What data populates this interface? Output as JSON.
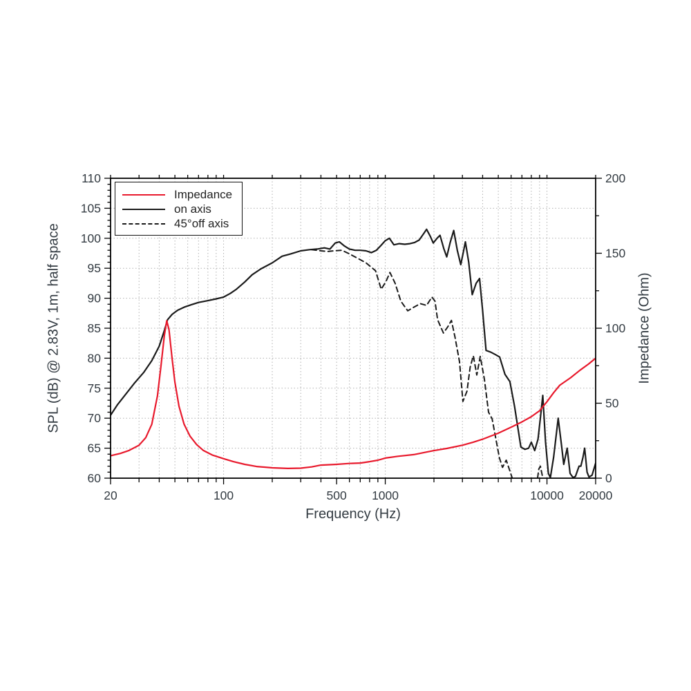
{
  "figure": {
    "xlabel": "Frequency (Hz)",
    "ylabel_left": "SPL (dB) @ 2.83V, 1m, half space",
    "ylabel_right": "Impedance (Ohm)"
  },
  "legend": {
    "items": [
      {
        "label": "Impedance",
        "style": "solid",
        "color": "#e8192c"
      },
      {
        "label": "on axis",
        "style": "solid",
        "color": "#1a1a1a"
      },
      {
        "label": "45°off axis",
        "style": "dashed",
        "color": "#1a1a1a"
      }
    ]
  },
  "colors": {
    "impedance_curve": "#e8192c",
    "spl_curve": "#1a1a1a",
    "grid": "#b0b0b0",
    "axis": "#000000",
    "tick_text": "#333b42"
  },
  "chart_data": {
    "type": "line",
    "title": "",
    "x_axis": {
      "label": "Frequency (Hz)",
      "scale": "log",
      "min": 20,
      "max": 20000,
      "tick_labels": [
        {
          "value": 20,
          "text": "20"
        },
        {
          "value": 100,
          "text": "100"
        },
        {
          "value": 500,
          "text": "500"
        },
        {
          "value": 1000,
          "text": "1000"
        },
        {
          "value": 10000,
          "text": "10000"
        },
        {
          "value": 20000,
          "text": "20000"
        }
      ]
    },
    "y_axis_left": {
      "label": "SPL (dB) @ 2.83V, 1m, half space",
      "min": 60,
      "max": 110,
      "major_step": 5,
      "minor_step": 1,
      "tick_labels": [
        "60",
        "65",
        "70",
        "75",
        "80",
        "85",
        "90",
        "95",
        "100",
        "105",
        "110"
      ]
    },
    "y_axis_right": {
      "label": "Impedance (Ohm)",
      "min": 0,
      "max": 200,
      "major_step": 50,
      "minor_step": 25,
      "tick_labels": [
        "0",
        "50",
        "100",
        "150",
        "200"
      ]
    },
    "grid": {
      "y_values_db": [
        65,
        70,
        75,
        80,
        85,
        90,
        95,
        100,
        105
      ],
      "x_log_minor_lines": true,
      "style": "dotted"
    },
    "legend_position": "top-left",
    "series": [
      {
        "name": "45°off axis",
        "axis": "left",
        "unit": "dB",
        "color": "#1a1a1a",
        "dash": "7,5",
        "width": 2,
        "points": [
          [
            350,
            98.1
          ],
          [
            400,
            97.9
          ],
          [
            440,
            97.8
          ],
          [
            480,
            97.9
          ],
          [
            540,
            98.0
          ],
          [
            600,
            97.4
          ],
          [
            670,
            96.7
          ],
          [
            760,
            95.9
          ],
          [
            870,
            94.6
          ],
          [
            944,
            91.5
          ],
          [
            1010,
            92.8
          ],
          [
            1069,
            94.3
          ],
          [
            1150,
            92.5
          ],
          [
            1248,
            89.5
          ],
          [
            1377,
            87.9
          ],
          [
            1500,
            88.5
          ],
          [
            1648,
            89.1
          ],
          [
            1800,
            88.8
          ],
          [
            1943,
            90.2
          ],
          [
            2030,
            89.5
          ],
          [
            2108,
            86.4
          ],
          [
            2289,
            84.2
          ],
          [
            2430,
            85.2
          ],
          [
            2566,
            86.3
          ],
          [
            2700,
            83.5
          ],
          [
            2877,
            79.4
          ],
          [
            3020,
            72.8
          ],
          [
            3200,
            74.5
          ],
          [
            3350,
            78.5
          ],
          [
            3506,
            80.4
          ],
          [
            3680,
            77.2
          ],
          [
            3868,
            80.3
          ],
          [
            4100,
            76.5
          ],
          [
            4350,
            71.0
          ],
          [
            4580,
            69.9
          ],
          [
            5080,
            63.4
          ],
          [
            5310,
            61.8
          ],
          [
            5600,
            63.0
          ],
          [
            5900,
            61.2
          ],
          [
            6100,
            60.0
          ],
          [
            6300,
            58.5
          ],
          [
            6600,
            57.0
          ],
          [
            8300,
            57.0
          ],
          [
            8600,
            58.5
          ],
          [
            8900,
            61.5
          ],
          [
            9100,
            62.0
          ],
          [
            9350,
            60.5
          ],
          [
            9600,
            57.5
          ]
        ]
      },
      {
        "name": "on axis",
        "axis": "left",
        "unit": "dB",
        "color": "#1a1a1a",
        "dash": null,
        "width": 2.2,
        "points": [
          [
            20,
            70.5
          ],
          [
            22,
            72.2
          ],
          [
            25,
            74.1
          ],
          [
            28,
            75.8
          ],
          [
            32,
            77.6
          ],
          [
            36,
            79.6
          ],
          [
            40,
            82.0
          ],
          [
            43,
            84.6
          ],
          [
            45,
            86.4
          ],
          [
            48,
            87.3
          ],
          [
            52,
            88.0
          ],
          [
            57,
            88.5
          ],
          [
            63,
            88.9
          ],
          [
            70,
            89.3
          ],
          [
            80,
            89.6
          ],
          [
            90,
            89.9
          ],
          [
            100,
            90.2
          ],
          [
            110,
            90.8
          ],
          [
            120,
            91.5
          ],
          [
            135,
            92.7
          ],
          [
            150,
            93.9
          ],
          [
            170,
            94.9
          ],
          [
            200,
            95.9
          ],
          [
            230,
            97.0
          ],
          [
            260,
            97.4
          ],
          [
            300,
            97.9
          ],
          [
            340,
            98.1
          ],
          [
            380,
            98.2
          ],
          [
            420,
            98.4
          ],
          [
            455,
            98.2
          ],
          [
            490,
            99.2
          ],
          [
            520,
            99.4
          ],
          [
            560,
            98.7
          ],
          [
            600,
            98.2
          ],
          [
            650,
            98.0
          ],
          [
            700,
            98.0
          ],
          [
            760,
            97.9
          ],
          [
            820,
            97.6
          ],
          [
            880,
            98.0
          ],
          [
            940,
            98.8
          ],
          [
            1000,
            99.6
          ],
          [
            1060,
            100.0
          ],
          [
            1130,
            98.9
          ],
          [
            1220,
            99.1
          ],
          [
            1320,
            99.0
          ],
          [
            1420,
            99.1
          ],
          [
            1520,
            99.3
          ],
          [
            1620,
            99.7
          ],
          [
            1730,
            100.8
          ],
          [
            1800,
            101.5
          ],
          [
            1900,
            100.3
          ],
          [
            1980,
            99.2
          ],
          [
            2090,
            100.0
          ],
          [
            2180,
            100.5
          ],
          [
            2300,
            98.3
          ],
          [
            2400,
            96.9
          ],
          [
            2520,
            99.3
          ],
          [
            2650,
            101.3
          ],
          [
            2790,
            98.0
          ],
          [
            2930,
            95.6
          ],
          [
            3030,
            97.5
          ],
          [
            3130,
            99.4
          ],
          [
            3280,
            96.0
          ],
          [
            3450,
            90.6
          ],
          [
            3650,
            92.5
          ],
          [
            3830,
            93.3
          ],
          [
            4000,
            88.0
          ],
          [
            4200,
            81.3
          ],
          [
            4500,
            81.0
          ],
          [
            4800,
            80.6
          ],
          [
            5100,
            80.2
          ],
          [
            5500,
            77.3
          ],
          [
            5900,
            76.1
          ],
          [
            6300,
            72.0
          ],
          [
            6900,
            65.2
          ],
          [
            7300,
            64.8
          ],
          [
            7700,
            65.0
          ],
          [
            8000,
            66.0
          ],
          [
            8400,
            64.6
          ],
          [
            8800,
            66.5
          ],
          [
            9100,
            70.0
          ],
          [
            9420,
            73.8
          ],
          [
            9800,
            66.0
          ],
          [
            10200,
            60.8
          ],
          [
            10500,
            60.1
          ],
          [
            11000,
            63.5
          ],
          [
            11730,
            70.0
          ],
          [
            12300,
            65.5
          ],
          [
            12700,
            62.3
          ],
          [
            13330,
            65.0
          ],
          [
            13900,
            60.8
          ],
          [
            14500,
            60.1
          ],
          [
            15000,
            60.3
          ],
          [
            15800,
            62.0
          ],
          [
            16200,
            62.0
          ],
          [
            16700,
            63.5
          ],
          [
            17100,
            65.0
          ],
          [
            17700,
            61.0
          ],
          [
            18200,
            60.2
          ],
          [
            19000,
            60.5
          ],
          [
            20000,
            62.5
          ]
        ]
      },
      {
        "name": "Impedance",
        "axis": "right",
        "unit": "Ohm",
        "color": "#e8192c",
        "dash": null,
        "width": 2.2,
        "points": [
          [
            20,
            15
          ],
          [
            23,
            16.5
          ],
          [
            26,
            18.5
          ],
          [
            30,
            22
          ],
          [
            33,
            27
          ],
          [
            36,
            36
          ],
          [
            39,
            55
          ],
          [
            41,
            75
          ],
          [
            43,
            95
          ],
          [
            44.5,
            105
          ],
          [
            46,
            99
          ],
          [
            48,
            80
          ],
          [
            50,
            64
          ],
          [
            53,
            48
          ],
          [
            57,
            36
          ],
          [
            62,
            28
          ],
          [
            68,
            22.5
          ],
          [
            75,
            18.5
          ],
          [
            85,
            15.5
          ],
          [
            100,
            13
          ],
          [
            115,
            11
          ],
          [
            135,
            9.2
          ],
          [
            160,
            7.8
          ],
          [
            200,
            6.9
          ],
          [
            250,
            6.5
          ],
          [
            300,
            6.7
          ],
          [
            350,
            7.5
          ],
          [
            400,
            8.7
          ],
          [
            500,
            9.2
          ],
          [
            600,
            9.8
          ],
          [
            700,
            10.1
          ],
          [
            800,
            11
          ],
          [
            900,
            12
          ],
          [
            1000,
            13.4
          ],
          [
            1200,
            14.6
          ],
          [
            1500,
            15.7
          ],
          [
            1800,
            17.4
          ],
          [
            2000,
            18.4
          ],
          [
            2400,
            19.8
          ],
          [
            3000,
            22
          ],
          [
            3500,
            24
          ],
          [
            4000,
            26
          ],
          [
            5000,
            30
          ],
          [
            6000,
            34
          ],
          [
            7000,
            37.5
          ],
          [
            8000,
            41
          ],
          [
            9000,
            45
          ],
          [
            10000,
            51
          ],
          [
            11000,
            57
          ],
          [
            12000,
            62
          ],
          [
            14000,
            67
          ],
          [
            16000,
            72
          ],
          [
            18000,
            76
          ],
          [
            20000,
            80
          ]
        ]
      }
    ],
    "annotations": {
      "impedance_peak": {
        "freq_hz": 44.5,
        "ohm": 105
      },
      "impedance_min": {
        "freq_hz": 250,
        "ohm": 6.5
      },
      "spl_plateau_db": 98.5,
      "spl_max": {
        "freq_hz": 1800,
        "db": 101.5
      }
    }
  }
}
